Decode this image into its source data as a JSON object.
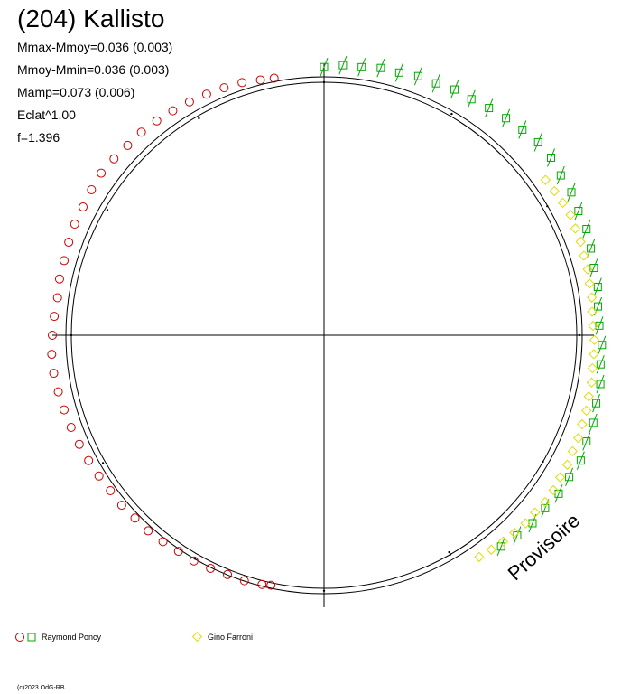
{
  "title": "(204) Kallisto",
  "stats": {
    "line1": "Mmax-Mmoy=0.036 (0.003)",
    "line2": "Mmoy-Mmin=0.036 (0.003)",
    "line3": "Mamp=0.073 (0.006)",
    "line4": "Eclat^1.00",
    "line5": "f=1.396"
  },
  "watermark": "Provisoire",
  "copyright": "(c)2023 OdG-RB",
  "legend": [
    {
      "label": "Raymond Poncy",
      "symbols": [
        "circle",
        "square"
      ],
      "colors": [
        "#cc0000",
        "#00aa00"
      ]
    },
    {
      "label": "Gino Farroni",
      "symbols": [
        "diamond"
      ],
      "colors": [
        "#dddd00"
      ]
    }
  ],
  "chart_data": {
    "type": "scatter",
    "polar": true,
    "reference_circle": true,
    "crosshair": true,
    "series": [
      {
        "name": "Raymond Poncy",
        "marker": "circle",
        "color": "#cc0000",
        "angle_deg": [
          101,
          104,
          108,
          112,
          116,
          120,
          124,
          128,
          132,
          136,
          140,
          144,
          148,
          152,
          156,
          160,
          164,
          168,
          172,
          176,
          180,
          184,
          188,
          192,
          196,
          200,
          204,
          208,
          212,
          216,
          220,
          224,
          228,
          232,
          236,
          240,
          244,
          248,
          252,
          256,
          258
        ],
        "radius": [
          1.035,
          1.04,
          1.05,
          1.055,
          1.06,
          1.065,
          1.07,
          1.075,
          1.08,
          1.08,
          1.085,
          1.09,
          1.085,
          1.08,
          1.08,
          1.075,
          1.07,
          1.07,
          1.065,
          1.07,
          1.075,
          1.08,
          1.08,
          1.075,
          1.07,
          1.065,
          1.06,
          1.055,
          1.05,
          1.045,
          1.045,
          1.04,
          1.04,
          1.035,
          1.03,
          1.03,
          1.025,
          1.02,
          1.02,
          1.015,
          1.01
        ]
      },
      {
        "name": "Raymond Poncy",
        "marker": "square",
        "color": "#00aa00",
        "angle_deg": [
          -50,
          -46,
          -42,
          -38,
          -34,
          -30,
          -26,
          -22,
          -18,
          -14,
          -10,
          -6,
          -2,
          2,
          6,
          10,
          14,
          18,
          22,
          26,
          30,
          34,
          38,
          42,
          46,
          50,
          54,
          58,
          62,
          66,
          70,
          74,
          78,
          82,
          86,
          90
        ],
        "radius": [
          1.09,
          1.1,
          1.11,
          1.11,
          1.12,
          1.12,
          1.13,
          1.12,
          1.12,
          1.11,
          1.11,
          1.1,
          1.1,
          1.09,
          1.09,
          1.1,
          1.1,
          1.11,
          1.12,
          1.12,
          1.13,
          1.13,
          1.14,
          1.14,
          1.13,
          1.12,
          1.11,
          1.1,
          1.1,
          1.09,
          1.09,
          1.08,
          1.08,
          1.07,
          1.07,
          1.06
        ]
      },
      {
        "name": "Gino Farroni",
        "marker": "diamond",
        "color": "#dddd00",
        "angle_deg": [
          -55,
          -52,
          -49,
          -46,
          -43,
          -40,
          -37,
          -34,
          -31,
          -28,
          -25,
          -22,
          -19,
          -16,
          -13,
          -10,
          -7,
          -4,
          -1,
          2,
          5,
          8,
          11,
          14,
          17,
          20,
          23,
          26,
          29,
          32,
          35
        ],
        "radius": [
          1.07,
          1.075,
          1.08,
          1.085,
          1.09,
          1.09,
          1.095,
          1.095,
          1.09,
          1.09,
          1.085,
          1.085,
          1.08,
          1.08,
          1.075,
          1.075,
          1.07,
          1.07,
          1.07,
          1.065,
          1.065,
          1.07,
          1.07,
          1.075,
          1.075,
          1.08,
          1.08,
          1.085,
          1.08,
          1.075,
          1.07
        ]
      },
      {
        "name": "",
        "marker": "dot",
        "color": "#000000",
        "angle_deg": [
          -60,
          -30,
          0,
          30,
          60,
          90,
          120,
          150,
          180,
          210,
          240,
          270,
          300
        ],
        "radius": [
          0.99,
          1.0,
          1.01,
          1.02,
          1.01,
          1.0,
          0.99,
          0.99,
          1.0,
          1.01,
          1.02,
          1.01,
          1.0
        ]
      }
    ]
  }
}
